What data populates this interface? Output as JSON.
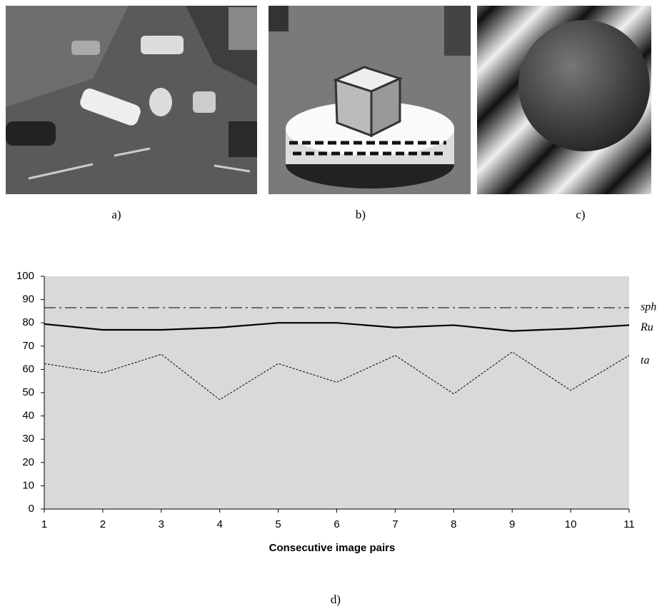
{
  "figure": {
    "panels": [
      {
        "caption": "a)"
      },
      {
        "caption": "b)"
      },
      {
        "caption": "c)"
      }
    ],
    "chart_caption": "d)"
  },
  "chart_data": {
    "type": "line",
    "xlabel": "Consecutive image pairs",
    "x": [
      1,
      2,
      3,
      4,
      5,
      6,
      7,
      8,
      9,
      10,
      11
    ],
    "series": [
      {
        "name": "sph",
        "color": "#000000",
        "style": "dashdot",
        "values": [
          86.5,
          86.5,
          86.5,
          86.5,
          86.5,
          86.5,
          86.5,
          86.5,
          86.5,
          86.5,
          86.5
        ]
      },
      {
        "name": "Ru",
        "color": "#000000",
        "style": "solid",
        "values": [
          79.5,
          77,
          77,
          78,
          80,
          80,
          78,
          79,
          76.5,
          77.5,
          79
        ]
      },
      {
        "name": "ta",
        "color": "#000000",
        "style": "dotted",
        "values": [
          62.5,
          58.5,
          66.5,
          47,
          62.5,
          54.5,
          66,
          49.5,
          67.5,
          51,
          66
        ]
      }
    ],
    "xlim": [
      1,
      11
    ],
    "xticks": [
      1,
      2,
      3,
      4,
      5,
      6,
      7,
      8,
      9,
      10,
      11
    ],
    "ylim": [
      0,
      100
    ],
    "yticks": [
      0,
      10,
      20,
      30,
      40,
      50,
      60,
      70,
      80,
      90,
      100
    ],
    "background": "#d9d9d9"
  }
}
